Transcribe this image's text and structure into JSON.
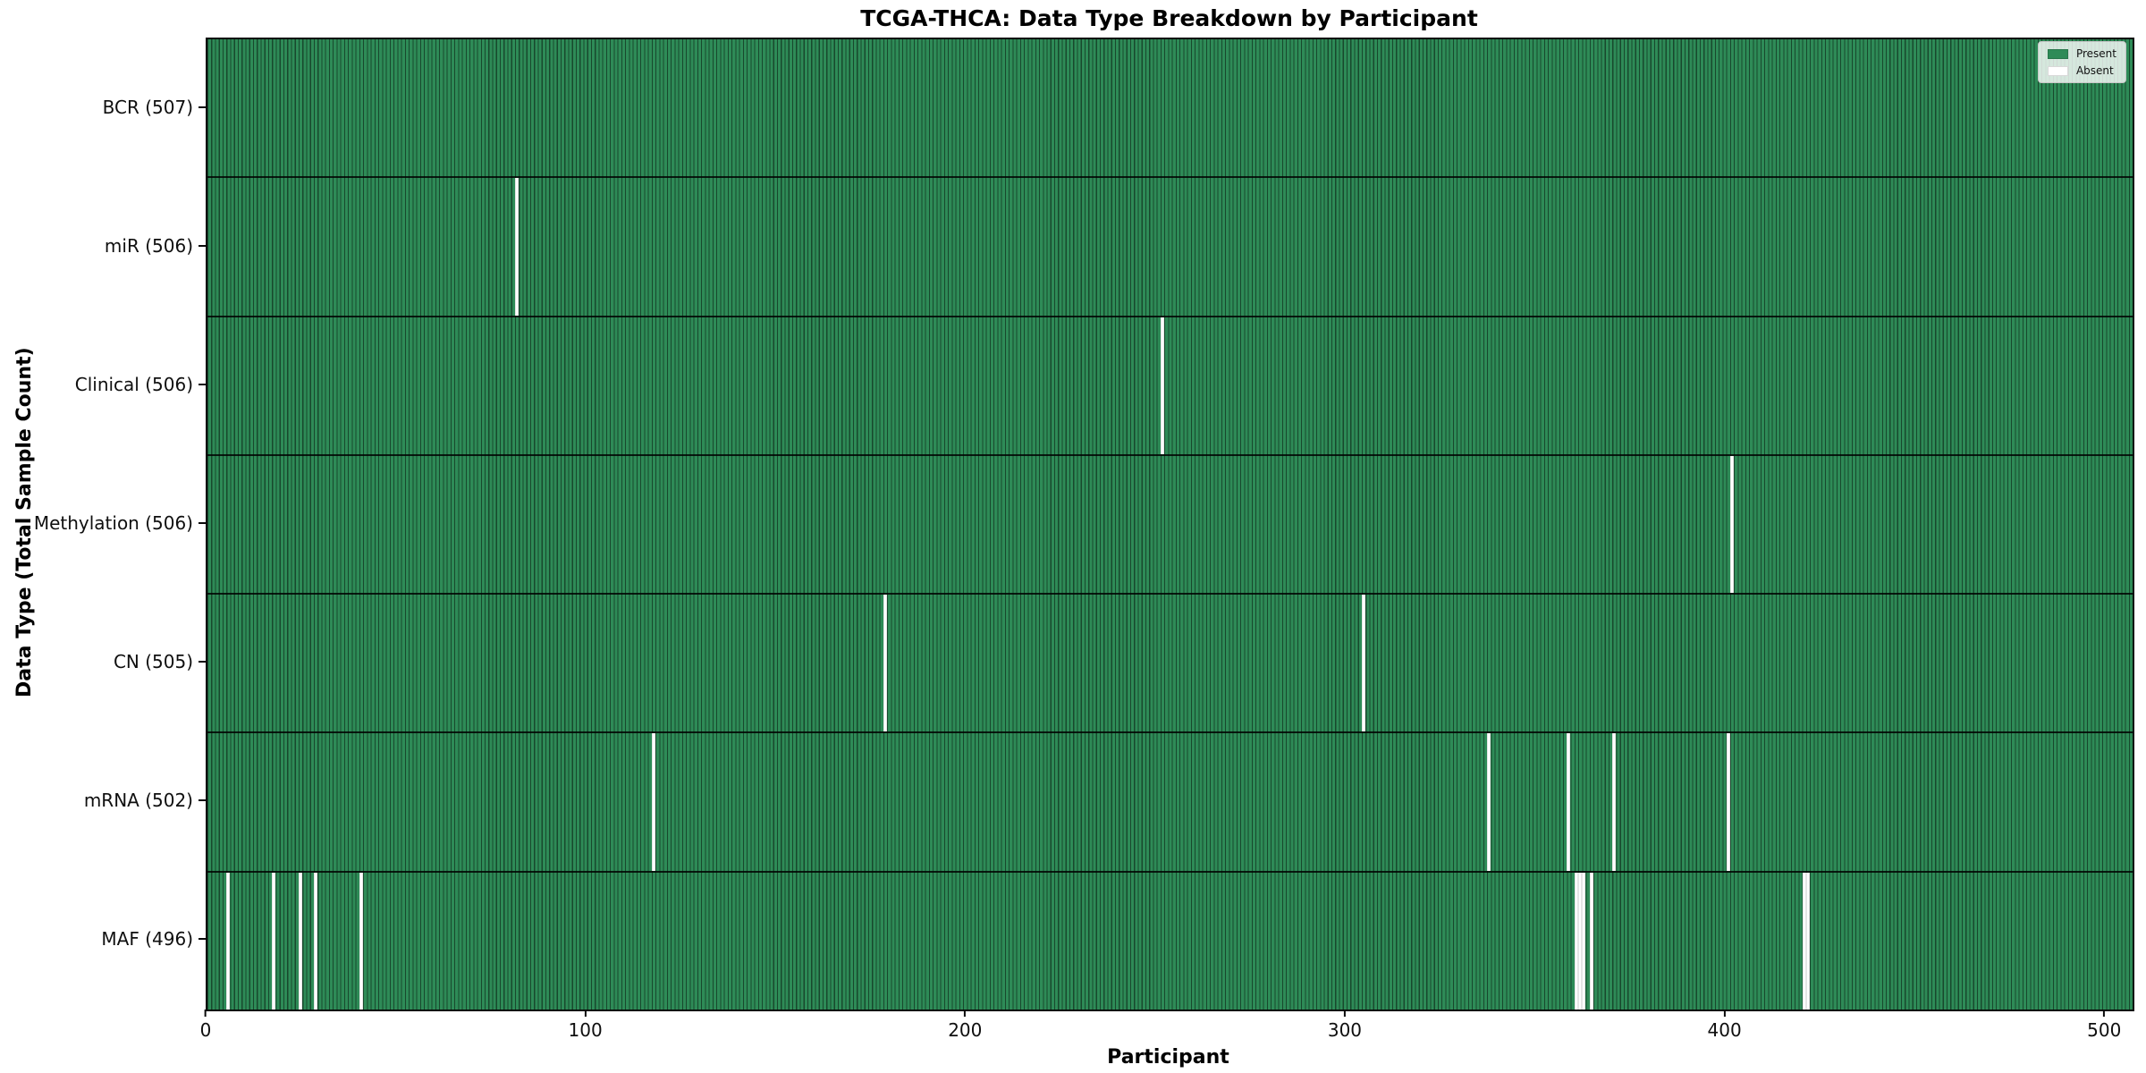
{
  "figure": {
    "title": "TCGA-THCA: Data Type Breakdown by Participant",
    "xlabel": "Participant",
    "ylabel": "Data Type (Total Sample Count)"
  },
  "legend": {
    "entries": [
      {
        "label": "Present",
        "color": "#2e8b57"
      },
      {
        "label": "Absent",
        "color": "#ffffff"
      }
    ]
  },
  "colors": {
    "present": "#2e8b57",
    "absent": "#ffffff",
    "bar_edge": "rgba(0,0,0,0.48)",
    "spine": "#0a0a0a",
    "background": "#ffffff"
  },
  "chart_data": {
    "type": "heatmap",
    "title": "TCGA-THCA: Data Type Breakdown by Participant",
    "xlabel": "Participant",
    "ylabel": "Data Type (Total Sample Count)",
    "legend": [
      "Present",
      "Absent"
    ],
    "legend_position": "upper right",
    "grid": false,
    "n_participants": 507,
    "xlim": [
      0,
      507
    ],
    "x_ticks": [
      0,
      100,
      200,
      300,
      400,
      500
    ],
    "rows": [
      {
        "data_type": "BCR",
        "label": "BCR (507)",
        "present_count": 507,
        "absent_participants": []
      },
      {
        "data_type": "miR",
        "label": "miR (506)",
        "present_count": 506,
        "absent_participants": [
          81
        ]
      },
      {
        "data_type": "Clinical",
        "label": "Clinical (506)",
        "present_count": 506,
        "absent_participants": [
          251
        ]
      },
      {
        "data_type": "Methylation",
        "label": "Methylation (506)",
        "present_count": 506,
        "absent_participants": [
          401
        ]
      },
      {
        "data_type": "CN",
        "label": "CN (505)",
        "present_count": 505,
        "absent_participants": [
          178,
          304
        ]
      },
      {
        "data_type": "mRNA",
        "label": "mRNA (502)",
        "present_count": 502,
        "absent_participants": [
          117,
          337,
          358,
          370,
          400
        ]
      },
      {
        "data_type": "MAF",
        "label": "MAF (496)",
        "present_count": 496,
        "absent_participants": [
          5,
          17,
          24,
          28,
          40,
          360,
          361,
          362,
          364,
          420,
          421
        ]
      }
    ]
  }
}
